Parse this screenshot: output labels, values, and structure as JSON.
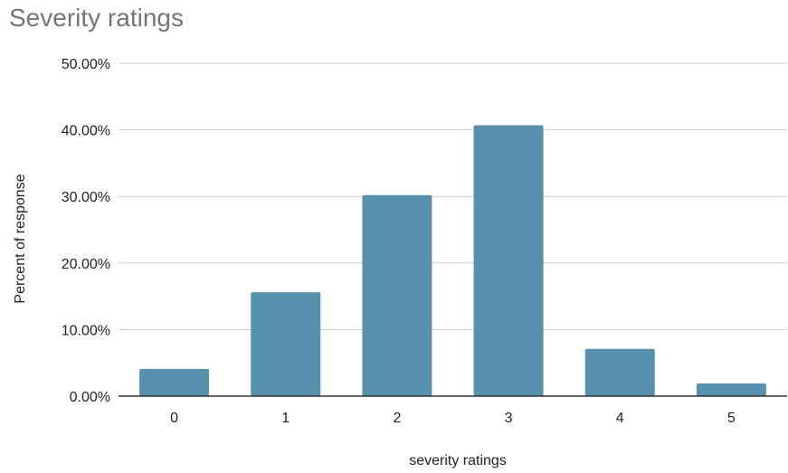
{
  "chart_data": {
    "type": "bar",
    "title": "Severity ratings",
    "xlabel": "severity ratings",
    "ylabel": "Percent of response",
    "categories": [
      "0",
      "1",
      "2",
      "3",
      "4",
      "5"
    ],
    "values": [
      4.1,
      15.6,
      30.2,
      40.7,
      7.1,
      1.9
    ],
    "ylim": [
      0,
      50
    ],
    "yticks": [
      "0.00%",
      "10.00%",
      "20.00%",
      "30.00%",
      "40.00%",
      "50.00%"
    ],
    "grid": true,
    "colors": {
      "bar": "#5891ad",
      "grid": "#cccccc",
      "axis": "#333333"
    }
  }
}
